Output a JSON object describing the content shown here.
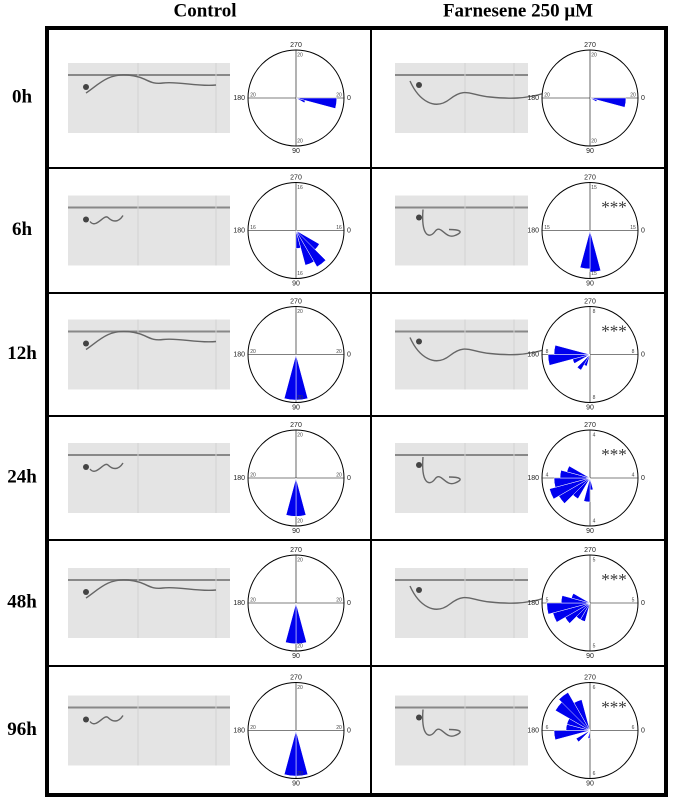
{
  "columns": [
    "Control",
    "Farnesene 250 μM"
  ],
  "angle_labels": [
    0,
    90,
    180,
    270
  ],
  "rows": [
    {
      "label": "0h",
      "plots": [
        {
          "rmax": 20,
          "petals": [
            {
              "angle": 7.5,
              "value": 17
            },
            {
              "angle": 22.5,
              "value": 4
            }
          ]
        },
        {
          "rmax": 20,
          "petals": [
            {
              "angle": 7.5,
              "value": 15
            },
            {
              "angle": 22.5,
              "value": 3
            }
          ]
        }
      ]
    },
    {
      "label": "6h",
      "plots": [
        {
          "rmax": 16,
          "petals": [
            {
              "angle": 37.5,
              "value": 9
            },
            {
              "angle": 52.5,
              "value": 14
            },
            {
              "angle": 67.5,
              "value": 12
            },
            {
              "angle": 82.5,
              "value": 6
            }
          ]
        },
        {
          "rmax": 15,
          "significance": "***",
          "petals": [
            {
              "angle": 82.5,
              "value": 13
            },
            {
              "angle": 97.5,
              "value": 12
            }
          ]
        }
      ]
    },
    {
      "label": "12h",
      "plots": [
        {
          "rmax": 20,
          "petals": [
            {
              "angle": 82.5,
              "value": 19
            },
            {
              "angle": 97.5,
              "value": 19
            }
          ]
        },
        {
          "rmax": 8,
          "significance": "***",
          "petals": [
            {
              "angle": 112.5,
              "value": 2
            },
            {
              "angle": 127.5,
              "value": 3
            },
            {
              "angle": 157.5,
              "value": 3
            },
            {
              "angle": 172.5,
              "value": 7
            },
            {
              "angle": 187.5,
              "value": 6
            }
          ]
        }
      ]
    },
    {
      "label": "24h",
      "plots": [
        {
          "rmax": 20,
          "petals": [
            {
              "angle": 82.5,
              "value": 16
            },
            {
              "angle": 97.5,
              "value": 16
            }
          ]
        },
        {
          "rmax": 4,
          "significance": "***",
          "petals": [
            {
              "angle": 82.5,
              "value": 1
            },
            {
              "angle": 97.5,
              "value": 2
            },
            {
              "angle": 127.5,
              "value": 2
            },
            {
              "angle": 142.5,
              "value": 3
            },
            {
              "angle": 157.5,
              "value": 3.5
            },
            {
              "angle": 172.5,
              "value": 3
            },
            {
              "angle": 187.5,
              "value": 2.5
            },
            {
              "angle": 202.5,
              "value": 2
            }
          ]
        }
      ]
    },
    {
      "label": "48h",
      "plots": [
        {
          "rmax": 20,
          "petals": [
            {
              "angle": 82.5,
              "value": 17
            },
            {
              "angle": 97.5,
              "value": 17
            }
          ]
        },
        {
          "rmax": 5,
          "significance": "***",
          "petals": [
            {
              "angle": 112.5,
              "value": 2
            },
            {
              "angle": 127.5,
              "value": 2
            },
            {
              "angle": 142.5,
              "value": 3
            },
            {
              "angle": 157.5,
              "value": 4
            },
            {
              "angle": 172.5,
              "value": 4.5
            },
            {
              "angle": 187.5,
              "value": 3
            },
            {
              "angle": 202.5,
              "value": 2
            }
          ]
        }
      ]
    },
    {
      "label": "96h",
      "plots": [
        {
          "rmax": 20,
          "petals": [
            {
              "angle": 82.5,
              "value": 19
            },
            {
              "angle": 97.5,
              "value": 19
            }
          ]
        },
        {
          "rmax": 6,
          "significance": "***",
          "petals": [
            {
              "angle": 97.5,
              "value": 1
            },
            {
              "angle": 142.5,
              "value": 2
            },
            {
              "angle": 172.5,
              "value": 4.5
            },
            {
              "angle": 187.5,
              "value": 3
            },
            {
              "angle": 202.5,
              "value": 3
            },
            {
              "angle": 217.5,
              "value": 5
            },
            {
              "angle": 232.5,
              "value": 5.5
            },
            {
              "angle": 247.5,
              "value": 4
            }
          ]
        }
      ]
    }
  ]
}
